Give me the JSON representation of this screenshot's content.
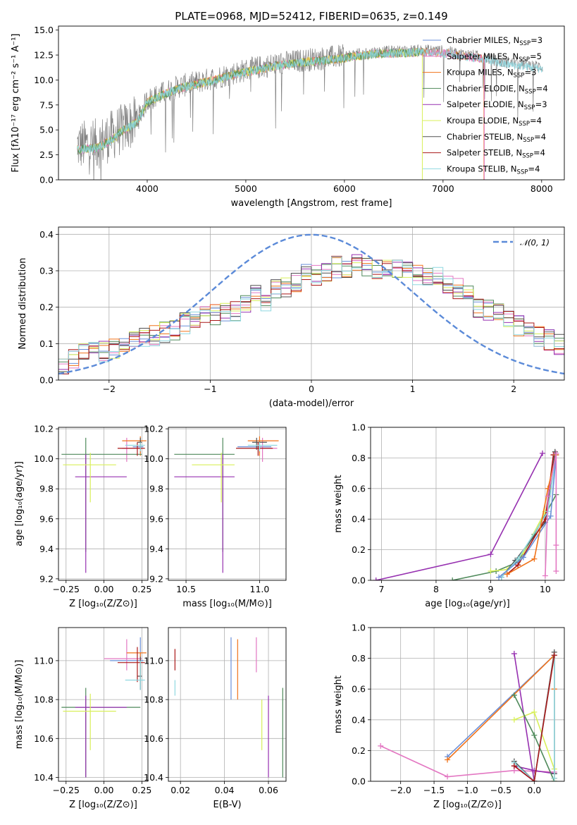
{
  "colors": {
    "Chabrier MILES": "#6a8fd8",
    "Salpeter MILES": "#e377c2",
    "Kroupa MILES": "#f0731a",
    "Chabrier ELODIE": "#4f8a5b",
    "Salpeter ELODIE": "#9630b0",
    "Kroupa ELODIE": "#d8ef5a",
    "Chabrier STELIB": "#505050",
    "Salpeter STELIB": "#aa1818",
    "Kroupa STELIB": "#8fd8e0",
    "gauss": "#5b8ad8",
    "spectrum": "#808080"
  },
  "chart_data": [
    {
      "id": "spectrum",
      "type": "line",
      "title": "PLATE=0968, MJD=52412, FIBERID=0635, z=0.149",
      "xlabel": "wavelength [Angstrom, rest frame]",
      "ylabel": "Flux [fλ10⁻¹⁷ erg cm⁻² s⁻¹ A⁻¹]",
      "xlim": [
        3100,
        8230
      ],
      "ylim": [
        0,
        15.4
      ],
      "xticks": [
        "4000",
        "5000",
        "6000",
        "7000",
        "8000"
      ],
      "yticks": [
        "0.0",
        "2.5",
        "5.0",
        "7.5",
        "10.0",
        "12.5",
        "15.0"
      ],
      "data_range": [
        3290,
        8010
      ],
      "continuum": {
        "x": [
          3290,
          3500,
          3700,
          3900,
          4000,
          4300,
          4600,
          5000,
          5300,
          5600,
          6000,
          6300,
          6600,
          6800,
          7000,
          7200,
          7400,
          7600,
          7800,
          8010
        ],
        "y": [
          3.4,
          3.6,
          4.8,
          6.0,
          8.0,
          9.3,
          10.0,
          11.0,
          11.6,
          12.0,
          12.4,
          12.8,
          12.9,
          13.0,
          12.9,
          12.6,
          12.3,
          11.8,
          11.6,
          11.3
        ]
      },
      "legend_title": "",
      "legend": [
        {
          "name": "Chabrier MILES",
          "label": "Chabrier MILES, N",
          "sub": "SSP",
          "suffix": "=3"
        },
        {
          "name": "Salpeter MILES",
          "label": "Salpeter MILES, N",
          "sub": "SSP",
          "suffix": "=5"
        },
        {
          "name": "Kroupa MILES",
          "label": "Kroupa MILES, N",
          "sub": "SSP",
          "suffix": "=3"
        },
        {
          "name": "Chabrier ELODIE",
          "label": "Chabrier ELODIE, N",
          "sub": "SSP",
          "suffix": "=4"
        },
        {
          "name": "Salpeter ELODIE",
          "label": "Salpeter ELODIE, N",
          "sub": "SSP",
          "suffix": "=3"
        },
        {
          "name": "Kroupa ELODIE",
          "label": "Kroupa ELODIE, N",
          "sub": "SSP",
          "suffix": "=4"
        },
        {
          "name": "Chabrier STELIB",
          "label": "Chabrier STELIB, N",
          "sub": "SSP",
          "suffix": "=4"
        },
        {
          "name": "Salpeter STELIB",
          "label": "Salpeter STELIB, N",
          "sub": "SSP",
          "suffix": "=4"
        },
        {
          "name": "Kroupa STELIB",
          "label": "Kroupa STELIB, N",
          "sub": "SSP",
          "suffix": "=4"
        }
      ],
      "grid": false
    },
    {
      "id": "residuals",
      "type": "line",
      "xlabel": "(data-model)/error",
      "ylabel": "Normed distribution",
      "xlim": [
        -2.5,
        2.5
      ],
      "ylim": [
        0,
        0.42
      ],
      "xticks": [
        "−2",
        "−1",
        "0",
        "1",
        "2"
      ],
      "yticks": [
        "0.0",
        "0.1",
        "0.2",
        "0.3",
        "0.4"
      ],
      "grid": true,
      "legend": "𝒩(0, 1)",
      "legend_position": "top-right",
      "bin_width": 0.1,
      "hist_edges_start": -2.5,
      "hist_base": [
        0.035,
        0.06,
        0.07,
        0.09,
        0.08,
        0.085,
        0.095,
        0.11,
        0.115,
        0.12,
        0.13,
        0.14,
        0.155,
        0.16,
        0.175,
        0.18,
        0.19,
        0.19,
        0.21,
        0.235,
        0.215,
        0.25,
        0.255,
        0.27,
        0.29,
        0.285,
        0.3,
        0.31,
        0.3,
        0.315,
        0.315,
        0.3,
        0.31,
        0.3,
        0.305,
        0.29,
        0.29,
        0.28,
        0.265,
        0.25,
        0.23,
        0.2,
        0.19,
        0.18,
        0.16,
        0.15,
        0.13,
        0.12,
        0.11,
        0.1
      ]
    },
    {
      "id": "age-vs-Z",
      "type": "scatter",
      "xlabel": "Z [log₁₀(Z/Z⊙)]",
      "ylabel": "age  [log₁₀(age/yr)]",
      "xlim": [
        -0.3,
        0.29
      ],
      "ylim": [
        9.19,
        10.21
      ],
      "xticks": [
        "−0.25",
        "0.00",
        "0.25"
      ],
      "yticks": [
        "9.2",
        "9.4",
        "9.6",
        "9.8",
        "10.0",
        "10.2"
      ],
      "grid": true,
      "errorbars": [
        {
          "s": "Chabrier MILES",
          "x": 0.24,
          "xl": 0.05,
          "xh": 0.02,
          "y": 10.08,
          "yl": 0.04,
          "yh": 0.05
        },
        {
          "s": "Salpeter MILES",
          "x": 0.15,
          "xl": 0.03,
          "xh": 0.1,
          "y": 10.07,
          "yl": 0.09,
          "yh": 0.07
        },
        {
          "s": "Kroupa MILES",
          "x": 0.24,
          "xl": 0.12,
          "xh": 0.04,
          "y": 10.12,
          "yl": 0.1,
          "yh": 0.03
        },
        {
          "s": "Chabrier ELODIE",
          "x": -0.12,
          "xl": 0.16,
          "xh": 0.37,
          "y": 10.03,
          "yl": 0.65,
          "yh": 0.11
        },
        {
          "s": "Salpeter ELODIE",
          "x": -0.12,
          "xl": 0.07,
          "xh": 0.27,
          "y": 9.88,
          "yl": 0.64,
          "yh": 0.15
        },
        {
          "s": "Kroupa ELODIE",
          "x": -0.09,
          "xl": 0.18,
          "xh": 0.17,
          "y": 9.96,
          "yl": 0.25,
          "yh": 0.08
        },
        {
          "s": "Chabrier STELIB",
          "x": 0.24,
          "xl": 0.02,
          "xh": 0.01,
          "y": 10.11,
          "yl": 0.05,
          "yh": 0.03
        },
        {
          "s": "Salpeter STELIB",
          "x": 0.22,
          "xl": 0.13,
          "xh": 0.05,
          "y": 10.07,
          "yl": 0.05,
          "yh": 0.04
        },
        {
          "s": "Kroupa STELIB",
          "x": 0.24,
          "xl": 0.1,
          "xh": 0.03,
          "y": 10.09,
          "yl": 0.04,
          "yh": 0.02
        }
      ]
    },
    {
      "id": "age-vs-mass",
      "type": "scatter",
      "xlabel": "mass [log₁₀(M/M⊙)]",
      "ylabel": "",
      "xlim": [
        10.38,
        11.18
      ],
      "ylim": [
        9.19,
        10.21
      ],
      "xticks": [
        "10.5",
        "11.0"
      ],
      "yticks": [
        "9.2",
        "9.4",
        "9.6",
        "9.8",
        "10.0",
        "10.2"
      ],
      "grid": true,
      "errorbars": [
        {
          "s": "Chabrier MILES",
          "x": 11.0,
          "xl": 0.15,
          "xh": 0.08,
          "y": 10.08,
          "yl": 0.04,
          "yh": 0.05
        },
        {
          "s": "Salpeter MILES",
          "x": 11.02,
          "xl": 0.04,
          "xh": 0.1,
          "y": 10.07,
          "yl": 0.09,
          "yh": 0.07
        },
        {
          "s": "Kroupa MILES",
          "x": 11.0,
          "xl": 0.08,
          "xh": 0.13,
          "y": 10.12,
          "yl": 0.1,
          "yh": 0.03
        },
        {
          "s": "Chabrier ELODIE",
          "x": 10.75,
          "xl": 0.33,
          "xh": 0.08,
          "y": 10.03,
          "yl": 0.65,
          "yh": 0.11
        },
        {
          "s": "Salpeter ELODIE",
          "x": 10.75,
          "xl": 0.33,
          "xh": 0.08,
          "y": 9.88,
          "yl": 0.64,
          "yh": 0.15
        },
        {
          "s": "Kroupa ELODIE",
          "x": 10.74,
          "xl": 0.2,
          "xh": 0.09,
          "y": 9.96,
          "yl": 0.25,
          "yh": 0.08
        },
        {
          "s": "Chabrier STELIB",
          "x": 10.98,
          "xl": 0.03,
          "xh": 0.07,
          "y": 10.11,
          "yl": 0.05,
          "yh": 0.03
        },
        {
          "s": "Salpeter STELIB",
          "x": 10.99,
          "xl": 0.15,
          "xh": 0.1,
          "y": 10.07,
          "yl": 0.05,
          "yh": 0.04
        },
        {
          "s": "Kroupa STELIB",
          "x": 11.0,
          "xl": 0.08,
          "xh": 0.12,
          "y": 10.09,
          "yl": 0.04,
          "yh": 0.02
        }
      ]
    },
    {
      "id": "mass-weight-vs-age",
      "type": "line",
      "xlabel": "age  [log₁₀(age/yr)]",
      "ylabel": "mass weight",
      "xlim": [
        6.8,
        10.35
      ],
      "ylim": [
        0,
        1
      ],
      "xticks": [
        "7",
        "8",
        "9",
        "10"
      ],
      "yticks": [
        "0.0",
        "0.2",
        "0.4",
        "0.6",
        "0.8",
        "1.0"
      ],
      "grid": true,
      "series": [
        {
          "s": "Salpeter ELODIE",
          "x": [
            6.9,
            9.0,
            9.95
          ],
          "y": [
            0.0,
            0.17,
            0.83
          ]
        },
        {
          "s": "Chabrier ELODIE",
          "x": [
            8.3,
            9.1,
            9.5,
            9.8,
            10.2
          ],
          "y": [
            0.0,
            0.06,
            0.12,
            0.3,
            0.56
          ]
        },
        {
          "s": "Kroupa ELODIE",
          "x": [
            9.0,
            9.3,
            9.6,
            10.0
          ],
          "y": [
            0.06,
            0.07,
            0.18,
            0.45
          ]
        },
        {
          "s": "Chabrier STELIB",
          "x": [
            9.2,
            9.45,
            10.0,
            10.18
          ],
          "y": [
            0.02,
            0.13,
            0.38,
            0.84
          ]
        },
        {
          "s": "Salpeter STELIB",
          "x": [
            9.3,
            9.5,
            10.0,
            10.15
          ],
          "y": [
            0.04,
            0.1,
            0.4,
            0.82
          ]
        },
        {
          "s": "Kroupa STELIB",
          "x": [
            9.2,
            9.5,
            10.05,
            10.2
          ],
          "y": [
            0.02,
            0.14,
            0.45,
            0.82
          ]
        },
        {
          "s": "Chabrier MILES",
          "x": [
            9.15,
            9.6,
            10.1,
            10.2
          ],
          "y": [
            0.02,
            0.15,
            0.42,
            0.82
          ]
        },
        {
          "s": "Kroupa MILES",
          "x": [
            9.3,
            9.8,
            10.05,
            10.2
          ],
          "y": [
            0.04,
            0.14,
            0.6,
            0.82
          ]
        },
        {
          "s": "Salpeter MILES",
          "x": [
            10.0,
            10.05,
            10.2,
            10.2,
            10.2
          ],
          "y": [
            0.03,
            0.55,
            0.83,
            0.23,
            0.06
          ]
        }
      ]
    },
    {
      "id": "mass-vs-Z",
      "type": "scatter",
      "xlabel": "Z [log₁₀(Z/Z⊙)]",
      "ylabel": "mass [log₁₀(M/M⊙)]",
      "xlim": [
        -0.3,
        0.29
      ],
      "ylim": [
        10.38,
        11.17
      ],
      "xticks": [
        "−0.25",
        "0.00",
        "0.25"
      ],
      "yticks": [
        "10.4",
        "10.6",
        "10.8",
        "11.0"
      ],
      "grid": true,
      "errorbars": [
        {
          "s": "Chabrier MILES",
          "x": 0.24,
          "xl": 0.2,
          "xh": 0.02,
          "y": 11.0,
          "yl": 0.15,
          "yh": 0.12
        },
        {
          "s": "Salpeter MILES",
          "x": 0.15,
          "xl": 0.15,
          "xh": 0.1,
          "y": 11.01,
          "yl": 0.06,
          "yh": 0.1
        },
        {
          "s": "Kroupa MILES",
          "x": 0.24,
          "xl": 0.09,
          "xh": 0.04,
          "y": 11.04,
          "yl": 0.15,
          "yh": 0.0
        },
        {
          "s": "Chabrier ELODIE",
          "x": -0.12,
          "xl": 0.16,
          "xh": 0.36,
          "y": 10.76,
          "yl": 0.36,
          "yh": 0.1
        },
        {
          "s": "Salpeter ELODIE",
          "x": -0.12,
          "xl": 0.07,
          "xh": 0.27,
          "y": 10.76,
          "yl": 0.36,
          "yh": 0.06
        },
        {
          "s": "Kroupa ELODIE",
          "x": -0.09,
          "xl": 0.18,
          "xh": 0.17,
          "y": 10.74,
          "yl": 0.2,
          "yh": 0.09
        },
        {
          "s": "Chabrier STELIB",
          "x": 0.24,
          "xl": 0.02,
          "xh": 0.01,
          "y": 10.92,
          "yl": 0.07,
          "yh": 0.1
        },
        {
          "s": "Salpeter STELIB",
          "x": 0.22,
          "xl": 0.13,
          "xh": 0.05,
          "y": 10.99,
          "yl": 0.1,
          "yh": 0.08
        },
        {
          "s": "Kroupa STELIB",
          "x": 0.24,
          "xl": 0.1,
          "xh": 0.03,
          "y": 10.9,
          "yl": 0.05,
          "yh": 0.1
        }
      ]
    },
    {
      "id": "mass-vs-ebv",
      "type": "scatter",
      "xlabel": "E(B-V)",
      "ylabel": "",
      "xlim": [
        0.0145,
        0.068
      ],
      "ylim": [
        10.38,
        11.17
      ],
      "xticks": [
        "0.02",
        "0.04",
        "0.06"
      ],
      "yticks": [
        "10.4",
        "10.6",
        "10.8",
        "11.0"
      ],
      "grid": true,
      "errorbars": [
        {
          "s": "Salpeter STELIB",
          "x": 0.0175,
          "y": 10.95,
          "yl": 0.0,
          "yh": 0.11
        },
        {
          "s": "Kroupa STELIB",
          "x": 0.0175,
          "y": 10.9,
          "yl": 0.08,
          "yh": 0.0
        },
        {
          "s": "Chabrier MILES",
          "x": 0.043,
          "y": 11.0,
          "yl": 0.2,
          "yh": 0.12
        },
        {
          "s": "Kroupa MILES",
          "x": 0.046,
          "y": 10.97,
          "yl": 0.17,
          "yh": 0.14
        },
        {
          "s": "Salpeter MILES",
          "x": 0.0545,
          "y": 11.0,
          "yl": 0.06,
          "yh": 0.12
        },
        {
          "s": "Kroupa ELODIE",
          "x": 0.057,
          "y": 10.7,
          "yl": 0.16,
          "yh": 0.1
        },
        {
          "s": "Salpeter ELODIE",
          "x": 0.06,
          "y": 10.6,
          "yl": 0.2,
          "yh": 0.22
        },
        {
          "s": "Chabrier ELODIE",
          "x": 0.0665,
          "y": 10.6,
          "yl": 0.2,
          "yh": 0.26
        }
      ]
    },
    {
      "id": "mass-weight-vs-Z",
      "type": "line",
      "xlabel": "Z [log₁₀(Z/Z⊙)]",
      "ylabel": "mass weight",
      "xlim": [
        -2.45,
        0.45
      ],
      "ylim": [
        0,
        1
      ],
      "xticks": [
        "−2.0",
        "−1.5",
        "−1.0",
        "−0.5",
        "0.0"
      ],
      "yticks": [
        "0.0",
        "0.2",
        "0.4",
        "0.6",
        "0.8",
        "1.0"
      ],
      "grid": true,
      "series": [
        {
          "s": "Salpeter MILES",
          "x": [
            -2.3,
            -1.3,
            -0.3,
            0.3,
            0.3
          ],
          "y": [
            0.23,
            0.03,
            0.07,
            0.06,
            0.02
          ]
        },
        {
          "s": "Salpeter ELODIE",
          "x": [
            -0.3,
            0.0,
            -0.3,
            0.0,
            0.3
          ],
          "y": [
            0.83,
            0.0,
            0.1,
            0.07,
            0.05
          ]
        },
        {
          "s": "Chabrier MILES",
          "x": [
            -1.3,
            0.3,
            0.3
          ],
          "y": [
            0.16,
            0.82,
            0.05
          ]
        },
        {
          "s": "Kroupa MILES",
          "x": [
            -1.3,
            0.3,
            0.3,
            0.3
          ],
          "y": [
            0.14,
            0.82,
            0.6,
            0.02
          ]
        },
        {
          "s": "Kroupa ELODIE",
          "x": [
            -0.3,
            0.0,
            0.3,
            0.3
          ],
          "y": [
            0.4,
            0.45,
            0.08,
            0.0
          ]
        },
        {
          "s": "Chabrier ELODIE",
          "x": [
            -0.3,
            0.0,
            0.3
          ],
          "y": [
            0.56,
            0.3,
            0.0
          ]
        },
        {
          "s": "Chabrier STELIB",
          "x": [
            -0.3,
            0.0,
            0.3,
            0.3
          ],
          "y": [
            0.13,
            0.0,
            0.84,
            0.05
          ]
        },
        {
          "s": "Kroupa STELIB",
          "x": [
            -0.3,
            0.0,
            0.3,
            0.3
          ],
          "y": [
            0.12,
            0.0,
            0.82,
            0.02
          ]
        },
        {
          "s": "Salpeter STELIB",
          "x": [
            -0.3,
            0.0,
            0.3
          ],
          "y": [
            0.1,
            0.0,
            0.82
          ]
        }
      ]
    }
  ]
}
